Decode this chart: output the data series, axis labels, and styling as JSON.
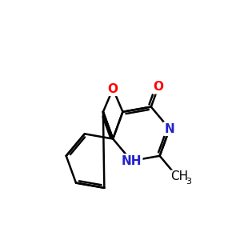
{
  "background_color": "#ffffff",
  "bond_color": "#000000",
  "bond_width": 1.8,
  "atom_colors": {
    "O": "#ff0000",
    "N": "#2222cc",
    "C": "#000000"
  },
  "font_size_atom": 11,
  "font_size_subscript": 8,
  "figsize": [
    3.0,
    3.0
  ],
  "dpi": 100
}
